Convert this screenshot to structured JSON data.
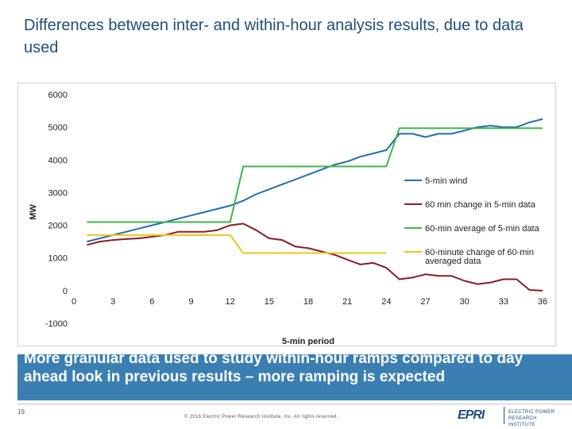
{
  "slide": {
    "title": "Differences between inter- and within-hour analysis results, due to data used",
    "banner_text": "More granular data used to study within-hour ramps compared to day ahead look in previous results – more ramping is expected",
    "page_number": "19",
    "copyright": "© 2016 Electric Power Research Institute, Inc. All rights reserved.",
    "logo": {
      "mark": "EPRI",
      "subtitle": "ELECTRIC POWER RESEARCH INSTITUTE"
    }
  },
  "chart_data": {
    "type": "line",
    "title": "",
    "xlabel": "5-min period",
    "ylabel": "MW",
    "xlim": [
      0,
      36
    ],
    "ylim": [
      -1000,
      6000
    ],
    "xticks": [
      "0",
      "3",
      "6",
      "9",
      "12",
      "15",
      "18",
      "21",
      "24",
      "27",
      "30",
      "33",
      "36"
    ],
    "yticks": [
      "-1000",
      "0",
      "1000",
      "2000",
      "3000",
      "4000",
      "5000",
      "6000"
    ],
    "grid": false,
    "legend_position": "right",
    "colors": {
      "wind": "#1f6fae",
      "change5": "#8b1a2b",
      "avg60": "#3cb54a",
      "change60": "#f0c419"
    },
    "series": [
      {
        "name": "5-min wind",
        "color": "#1f6fae",
        "x": [
          1,
          2,
          3,
          4,
          5,
          6,
          7,
          8,
          9,
          10,
          11,
          12,
          13,
          14,
          15,
          16,
          17,
          18,
          19,
          20,
          21,
          22,
          23,
          24,
          25,
          26,
          27,
          28,
          29,
          30,
          31,
          32,
          33,
          34,
          35,
          36
        ],
        "values": [
          1500,
          1600,
          1700,
          1800,
          1900,
          2000,
          2100,
          2200,
          2300,
          2400,
          2500,
          2600,
          2750,
          2950,
          3100,
          3250,
          3400,
          3550,
          3700,
          3850,
          3950,
          4100,
          4200,
          4300,
          4800,
          4800,
          4700,
          4800,
          4800,
          4900,
          5000,
          5050,
          5000,
          5000,
          5150,
          5250
        ]
      },
      {
        "name": "60 min change in 5-min data",
        "color": "#8b1a2b",
        "x": [
          1,
          2,
          3,
          4,
          5,
          6,
          7,
          8,
          9,
          10,
          11,
          12,
          13,
          14,
          15,
          16,
          17,
          18,
          19,
          20,
          21,
          22,
          23,
          24,
          25,
          26,
          27,
          28,
          29,
          30,
          31,
          32,
          33,
          34,
          35,
          36
        ],
        "values": [
          1400,
          1500,
          1550,
          1580,
          1600,
          1650,
          1700,
          1800,
          1800,
          1800,
          1850,
          2000,
          2050,
          1850,
          1600,
          1550,
          1350,
          1300,
          1200,
          1100,
          950,
          800,
          850,
          700,
          350,
          400,
          500,
          450,
          450,
          300,
          200,
          250,
          350,
          350,
          20,
          0
        ]
      },
      {
        "name": "60-min average of 5-min data",
        "color": "#3cb54a",
        "x": [
          1,
          12,
          13,
          24,
          25,
          36
        ],
        "values": [
          2100,
          2100,
          3800,
          3800,
          4970,
          4970
        ]
      },
      {
        "name": "60-minute change of 60-min averaged data",
        "color": "#f0c419",
        "x": [
          1,
          12,
          13,
          24
        ],
        "values": [
          1700,
          1700,
          1150,
          1150
        ]
      }
    ]
  }
}
